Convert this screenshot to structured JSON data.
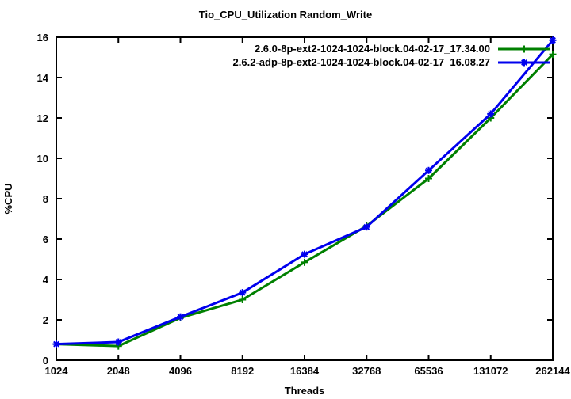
{
  "chart": {
    "title": "Tio_CPU_Utilization Random_Write",
    "xlabel": "Threads",
    "ylabel": "%CPU"
  },
  "chart_data": {
    "type": "line",
    "title": "Tio_CPU_Utilization Random_Write",
    "xlabel": "Threads",
    "ylabel": "%CPU",
    "x_scale": "log2",
    "categories": [
      "1024",
      "2048",
      "4096",
      "8192",
      "16384",
      "32768",
      "65536",
      "131072",
      "262144"
    ],
    "y_ticks": [
      0,
      2,
      4,
      6,
      8,
      10,
      12,
      14,
      16
    ],
    "ylim": [
      0,
      16
    ],
    "grid": false,
    "border": "box-with-mirrored-inward-ticks",
    "legend_position": "top-right-inside",
    "background_color": "#ffffff",
    "axis_color": "#000000",
    "series": [
      {
        "name": "2.6.0-8p-ext2-1024-1024-block.04-02-17_17.34.00",
        "color": "#008000",
        "marker": "plus",
        "values": [
          0.8,
          0.7,
          2.1,
          3.0,
          4.85,
          6.65,
          9.0,
          12.0,
          15.15
        ]
      },
      {
        "name": "2.6.2-adp-8p-ext2-1024-1024-block.04-02-17_16.08.27",
        "color": "#0000ee",
        "marker": "asterisk",
        "values": [
          0.8,
          0.9,
          2.15,
          3.35,
          5.25,
          6.6,
          9.4,
          12.2,
          15.85
        ]
      }
    ]
  }
}
